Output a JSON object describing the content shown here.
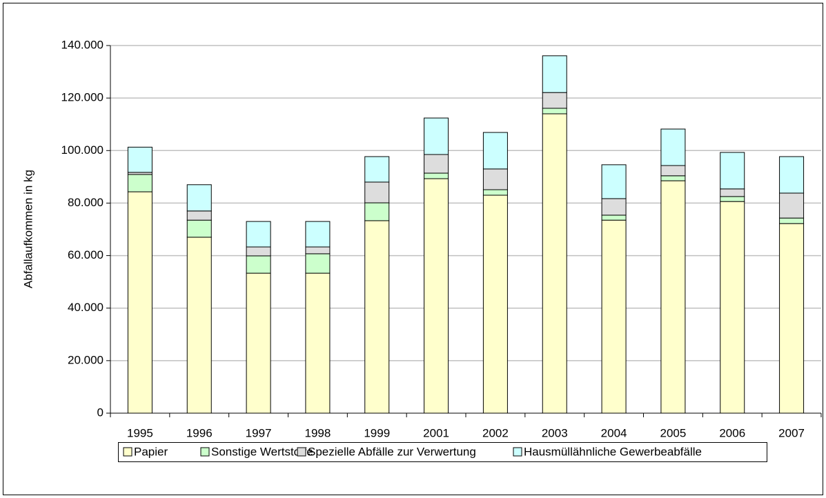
{
  "chart_data": {
    "type": "stacked_bar",
    "y_label": "Abfallaufkommen in kg",
    "categories": [
      "1995",
      "1996",
      "1997",
      "1998",
      "1999",
      "2001",
      "2002",
      "2003",
      "2004",
      "2005",
      "2006",
      "2007"
    ],
    "series": [
      {
        "name": "Papier",
        "color": "#ffffcc",
        "values": [
          84300,
          67000,
          53300,
          53300,
          73300,
          89300,
          83000,
          114000,
          73500,
          88500,
          80600,
          72200
        ]
      },
      {
        "name": "Sonstige Wertstoffe",
        "color": "#ccffcc",
        "values": [
          6600,
          6500,
          6600,
          7400,
          6800,
          2100,
          2100,
          2100,
          1900,
          1900,
          1900,
          2100
        ]
      },
      {
        "name": "Spezielle Abfälle zur Verwertung",
        "color": "#dddddd",
        "values": [
          800,
          3500,
          3400,
          2600,
          7900,
          7100,
          7900,
          6000,
          6300,
          3900,
          2900,
          9500
        ]
      },
      {
        "name": "Hausmüllähnliche Gewerbeabfälle",
        "color": "#ccffff",
        "values": [
          9600,
          10000,
          9700,
          9700,
          9700,
          13900,
          13900,
          14000,
          12900,
          13900,
          13900,
          13900
        ]
      }
    ],
    "ylim": [
      0,
      140000
    ],
    "yticks": [
      0,
      {
        "value": 20000,
        "label": "20.000"
      },
      {
        "value": 40000,
        "label": "40.000"
      },
      {
        "value": 60000,
        "label": "60.000"
      },
      {
        "value": 80000,
        "label": "80.000"
      },
      {
        "value": 100000,
        "label": "100.000"
      },
      {
        "value": 120000,
        "label": "120.000"
      },
      {
        "value": 140000,
        "label": "140.000"
      }
    ],
    "grid": true,
    "legend": "bottom"
  }
}
